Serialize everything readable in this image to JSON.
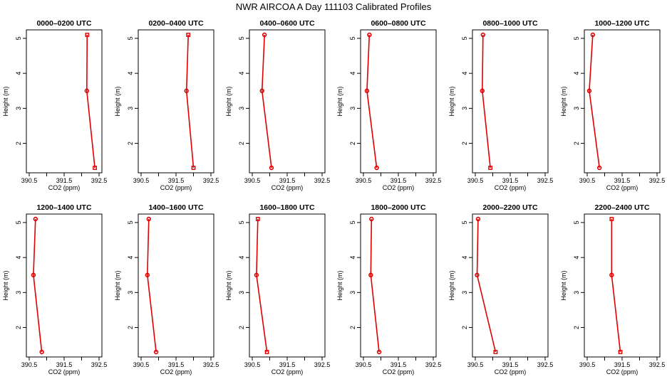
{
  "figure": {
    "title": "NWR AIRCOA A   Day 111103  Calibrated Profiles"
  },
  "chart_data": [
    {
      "type": "line",
      "title": "0000–0200 UTC",
      "xlabel": "CO2 (ppm)",
      "ylabel": "Height (m)",
      "xlim": [
        390.5,
        392.5
      ],
      "ylim": [
        1.3,
        5.1
      ],
      "x_ticks": [
        "390.5",
        "391.5",
        "392.5"
      ],
      "x_minor": [
        391.0,
        392.0
      ],
      "y_ticks": [
        "2",
        "3",
        "4",
        "5"
      ],
      "series": [
        {
          "x": [
            392.16,
            392.15,
            392.38
          ],
          "y": [
            5.1,
            3.5,
            1.3
          ],
          "markers": [
            "square",
            "circle",
            "square"
          ]
        }
      ]
    },
    {
      "type": "line",
      "title": "0200–0400 UTC",
      "xlabel": "CO2 (ppm)",
      "ylabel": "Height (m)",
      "xlim": [
        390.5,
        392.5
      ],
      "ylim": [
        1.3,
        5.1
      ],
      "x_ticks": [
        "390.5",
        "391.5",
        "392.5"
      ],
      "x_minor": [
        391.0,
        392.0
      ],
      "y_ticks": [
        "2",
        "3",
        "4",
        "5"
      ],
      "series": [
        {
          "x": [
            391.85,
            391.8,
            392.0
          ],
          "y": [
            5.1,
            3.5,
            1.3
          ],
          "markers": [
            "square",
            "circle",
            "square"
          ]
        }
      ]
    },
    {
      "type": "line",
      "title": "0400–0600 UTC",
      "xlabel": "CO2 (ppm)",
      "ylabel": "Height (m)",
      "xlim": [
        390.5,
        392.5
      ],
      "ylim": [
        1.3,
        5.1
      ],
      "x_ticks": [
        "390.5",
        "391.5",
        "392.5"
      ],
      "x_minor": [
        391.0,
        392.0
      ],
      "y_ticks": [
        "2",
        "3",
        "4",
        "5"
      ],
      "series": [
        {
          "x": [
            390.85,
            390.78,
            391.05
          ],
          "y": [
            5.1,
            3.5,
            1.3
          ],
          "markers": [
            "circle",
            "circle",
            "circle"
          ]
        }
      ]
    },
    {
      "type": "line",
      "title": "0600–0800 UTC",
      "xlabel": "CO2 (ppm)",
      "ylabel": "Height (m)",
      "xlim": [
        390.5,
        392.5
      ],
      "ylim": [
        1.3,
        5.1
      ],
      "x_ticks": [
        "390.5",
        "391.5",
        "392.5"
      ],
      "x_minor": [
        391.0,
        392.0
      ],
      "y_ticks": [
        "2",
        "3",
        "4",
        "5"
      ],
      "series": [
        {
          "x": [
            390.67,
            390.6,
            390.88
          ],
          "y": [
            5.1,
            3.5,
            1.3
          ],
          "markers": [
            "circle",
            "circle",
            "circle"
          ]
        }
      ]
    },
    {
      "type": "line",
      "title": "0800–1000 UTC",
      "xlabel": "CO2 (ppm)",
      "ylabel": "Height (m)",
      "xlim": [
        390.5,
        392.5
      ],
      "ylim": [
        1.3,
        5.1
      ],
      "x_ticks": [
        "390.5",
        "391.5",
        "392.5"
      ],
      "x_minor": [
        391.0,
        392.0
      ],
      "y_ticks": [
        "2",
        "3",
        "4",
        "5"
      ],
      "series": [
        {
          "x": [
            390.72,
            390.7,
            390.93
          ],
          "y": [
            5.1,
            3.5,
            1.3
          ],
          "markers": [
            "circle",
            "circle",
            "square"
          ]
        }
      ]
    },
    {
      "type": "line",
      "title": "1000–1200 UTC",
      "xlabel": "CO2 (ppm)",
      "ylabel": "Height (m)",
      "xlim": [
        390.5,
        392.5
      ],
      "ylim": [
        1.3,
        5.1
      ],
      "x_ticks": [
        "390.5",
        "391.5",
        "392.5"
      ],
      "x_minor": [
        391.0,
        392.0
      ],
      "y_ticks": [
        "2",
        "3",
        "4",
        "5"
      ],
      "series": [
        {
          "x": [
            390.66,
            390.56,
            390.85
          ],
          "y": [
            5.1,
            3.5,
            1.3
          ],
          "markers": [
            "circle",
            "circle",
            "circle"
          ]
        }
      ]
    },
    {
      "type": "line",
      "title": "1200–1400 UTC",
      "xlabel": "CO2 (ppm)",
      "ylabel": "Height (m)",
      "xlim": [
        390.5,
        392.5
      ],
      "ylim": [
        1.3,
        5.1
      ],
      "x_ticks": [
        "390.5",
        "391.5",
        "392.5"
      ],
      "x_minor": [
        391.0,
        392.0
      ],
      "y_ticks": [
        "2",
        "3",
        "4",
        "5"
      ],
      "series": [
        {
          "x": [
            390.68,
            390.62,
            390.86
          ],
          "y": [
            5.1,
            3.5,
            1.3
          ],
          "markers": [
            "circle",
            "circle",
            "circle"
          ]
        }
      ]
    },
    {
      "type": "line",
      "title": "1400–1600 UTC",
      "xlabel": "CO2 (ppm)",
      "ylabel": "Height (m)",
      "xlim": [
        390.5,
        392.5
      ],
      "ylim": [
        1.3,
        5.1
      ],
      "x_ticks": [
        "390.5",
        "391.5",
        "392.5"
      ],
      "x_minor": [
        391.0,
        392.0
      ],
      "y_ticks": [
        "2",
        "3",
        "4",
        "5"
      ],
      "series": [
        {
          "x": [
            390.72,
            390.68,
            390.93
          ],
          "y": [
            5.1,
            3.5,
            1.3
          ],
          "markers": [
            "circle",
            "circle",
            "circle"
          ]
        }
      ]
    },
    {
      "type": "line",
      "title": "1600–1800 UTC",
      "xlabel": "CO2 (ppm)",
      "ylabel": "Height (m)",
      "xlim": [
        390.5,
        392.5
      ],
      "ylim": [
        1.3,
        5.1
      ],
      "x_ticks": [
        "390.5",
        "391.5",
        "392.5"
      ],
      "x_minor": [
        391.0,
        392.0
      ],
      "y_ticks": [
        "2",
        "3",
        "4",
        "5"
      ],
      "series": [
        {
          "x": [
            390.66,
            390.62,
            390.92
          ],
          "y": [
            5.1,
            3.5,
            1.3
          ],
          "markers": [
            "square",
            "circle",
            "square"
          ]
        }
      ]
    },
    {
      "type": "line",
      "title": "1800–2000 UTC",
      "xlabel": "CO2 (ppm)",
      "ylabel": "Height (m)",
      "xlim": [
        390.5,
        392.5
      ],
      "ylim": [
        1.3,
        5.1
      ],
      "x_ticks": [
        "390.5",
        "391.5",
        "392.5"
      ],
      "x_minor": [
        391.0,
        392.0
      ],
      "y_ticks": [
        "2",
        "3",
        "4",
        "5"
      ],
      "series": [
        {
          "x": [
            390.73,
            390.71,
            390.95
          ],
          "y": [
            5.1,
            3.5,
            1.3
          ],
          "markers": [
            "circle",
            "circle",
            "circle"
          ]
        }
      ]
    },
    {
      "type": "line",
      "title": "2000–2200 UTC",
      "xlabel": "CO2 (ppm)",
      "ylabel": "Height (m)",
      "xlim": [
        390.5,
        392.5
      ],
      "ylim": [
        1.3,
        5.1
      ],
      "x_ticks": [
        "390.5",
        "391.5",
        "392.5"
      ],
      "x_minor": [
        391.0,
        392.0
      ],
      "y_ticks": [
        "2",
        "3",
        "4",
        "5"
      ],
      "series": [
        {
          "x": [
            390.58,
            390.55,
            391.08
          ],
          "y": [
            5.1,
            3.5,
            1.3
          ],
          "markers": [
            "circle",
            "circle",
            "square"
          ]
        }
      ]
    },
    {
      "type": "line",
      "title": "2200–2400 UTC",
      "xlabel": "CO2 (ppm)",
      "ylabel": "Height (m)",
      "xlim": [
        390.5,
        392.5
      ],
      "ylim": [
        1.3,
        5.1
      ],
      "x_ticks": [
        "390.5",
        "391.5",
        "392.5"
      ],
      "x_minor": [
        391.0,
        392.0
      ],
      "y_ticks": [
        "2",
        "3",
        "4",
        "5"
      ],
      "series": [
        {
          "x": [
            391.2,
            391.2,
            391.45
          ],
          "y": [
            5.1,
            3.5,
            1.3
          ],
          "markers": [
            "square",
            "circle",
            "square"
          ]
        }
      ]
    }
  ]
}
